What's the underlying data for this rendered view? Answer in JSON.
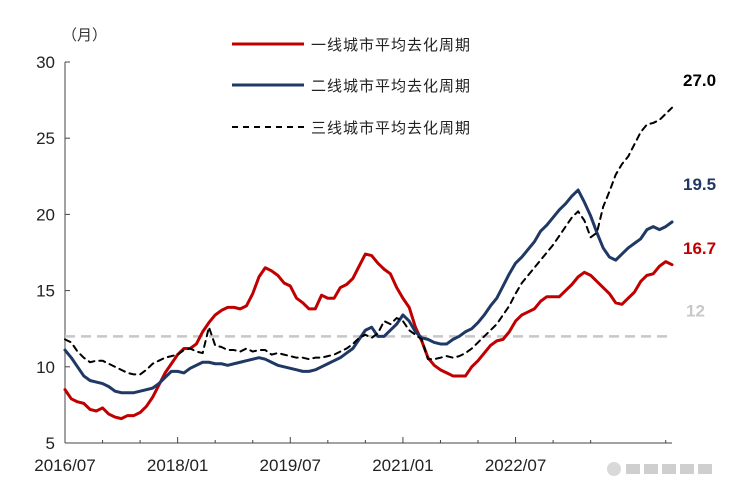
{
  "chart_data": {
    "type": "line",
    "y_unit_label": "（月）",
    "ylim": [
      5,
      30
    ],
    "y_ticks": [
      "5",
      "10",
      "15",
      "20",
      "25",
      "30"
    ],
    "x_tick_labels": [
      "2016/07",
      "2018/01",
      "2019/07",
      "2021/01",
      "2022/07"
    ],
    "grid": false,
    "legend_position": "top-center",
    "reference_line": {
      "value": 12,
      "label": "12",
      "color": "#c8c8c8"
    },
    "series": [
      {
        "name": "一线城市平均去化周期",
        "color": "#c00000",
        "style": "solid",
        "end_label": "16.7",
        "values": [
          8.5,
          7.9,
          7.7,
          7.6,
          7.2,
          7.1,
          7.3,
          6.9,
          6.7,
          6.6,
          6.8,
          6.8,
          7.0,
          7.4,
          8.0,
          8.8,
          9.6,
          10.2,
          10.8,
          11.2,
          11.2,
          11.5,
          12.3,
          12.9,
          13.4,
          13.7,
          13.9,
          13.9,
          13.8,
          14.0,
          14.8,
          15.9,
          16.5,
          16.3,
          16.0,
          15.5,
          15.3,
          14.5,
          14.2,
          13.8,
          13.8,
          14.7,
          14.5,
          14.5,
          15.2,
          15.4,
          15.8,
          16.6,
          17.4,
          17.3,
          16.8,
          16.4,
          16.1,
          15.2,
          14.5,
          13.9,
          12.6,
          11.7,
          10.6,
          10.1,
          9.8,
          9.6,
          9.4,
          9.4,
          9.4,
          10.0,
          10.4,
          10.9,
          11.4,
          11.7,
          11.8,
          12.3,
          13.0,
          13.4,
          13.6,
          13.8,
          14.3,
          14.6,
          14.6,
          14.6,
          15.0,
          15.4,
          15.9,
          16.2,
          16.0,
          15.6,
          15.2,
          14.8,
          14.2,
          14.1,
          14.5,
          14.9,
          15.6,
          16.0,
          16.1,
          16.6,
          16.9,
          16.7
        ]
      },
      {
        "name": "二线城市平均去化周期",
        "color": "#1f3864",
        "style": "solid",
        "end_label": "19.5",
        "values": [
          11.1,
          10.6,
          10.0,
          9.4,
          9.1,
          9.0,
          8.9,
          8.7,
          8.4,
          8.3,
          8.3,
          8.3,
          8.4,
          8.5,
          8.6,
          8.9,
          9.3,
          9.7,
          9.7,
          9.6,
          9.9,
          10.1,
          10.3,
          10.3,
          10.2,
          10.2,
          10.1,
          10.2,
          10.3,
          10.4,
          10.5,
          10.6,
          10.5,
          10.3,
          10.1,
          10.0,
          9.9,
          9.8,
          9.7,
          9.7,
          9.8,
          10.0,
          10.2,
          10.4,
          10.6,
          10.9,
          11.2,
          11.8,
          12.4,
          12.6,
          12.0,
          12.0,
          12.4,
          12.8,
          13.4,
          13.0,
          12.3,
          11.9,
          11.8,
          11.6,
          11.5,
          11.5,
          11.8,
          12.0,
          12.3,
          12.5,
          12.9,
          13.4,
          14.0,
          14.5,
          15.3,
          16.1,
          16.8,
          17.2,
          17.7,
          18.2,
          18.9,
          19.3,
          19.8,
          20.3,
          20.7,
          21.2,
          21.6,
          20.8,
          19.9,
          18.8,
          17.8,
          17.2,
          17.0,
          17.4,
          17.8,
          18.1,
          18.4,
          19.0,
          19.2,
          19.0,
          19.2,
          19.5
        ]
      },
      {
        "name": "三线城市平均去化周期",
        "color": "#000000",
        "style": "dashed",
        "end_label": "27.0",
        "values": [
          11.8,
          11.6,
          11.0,
          10.6,
          10.3,
          10.4,
          10.4,
          10.2,
          10.0,
          9.8,
          9.6,
          9.5,
          9.5,
          9.8,
          10.2,
          10.4,
          10.6,
          10.7,
          10.8,
          11.1,
          11.2,
          11.0,
          10.9,
          12.6,
          11.4,
          11.3,
          11.1,
          11.1,
          11.0,
          11.2,
          11.0,
          11.1,
          11.1,
          10.8,
          10.9,
          10.8,
          10.7,
          10.6,
          10.6,
          10.5,
          10.6,
          10.6,
          10.7,
          10.8,
          11.0,
          11.2,
          11.5,
          11.9,
          12.1,
          11.9,
          12.2,
          13.0,
          12.8,
          13.2,
          13.0,
          12.4,
          12.1,
          11.8,
          10.5,
          10.5,
          10.6,
          10.7,
          10.6,
          10.7,
          10.9,
          11.2,
          11.6,
          12.0,
          12.4,
          12.8,
          13.4,
          14.0,
          14.8,
          15.5,
          16.0,
          16.5,
          17.0,
          17.5,
          18.0,
          18.6,
          19.2,
          19.8,
          20.2,
          19.6,
          18.5,
          18.8,
          20.5,
          21.5,
          22.6,
          23.3,
          23.8,
          24.6,
          25.4,
          25.9,
          26.0,
          26.2,
          26.6,
          27.0
        ]
      }
    ]
  }
}
